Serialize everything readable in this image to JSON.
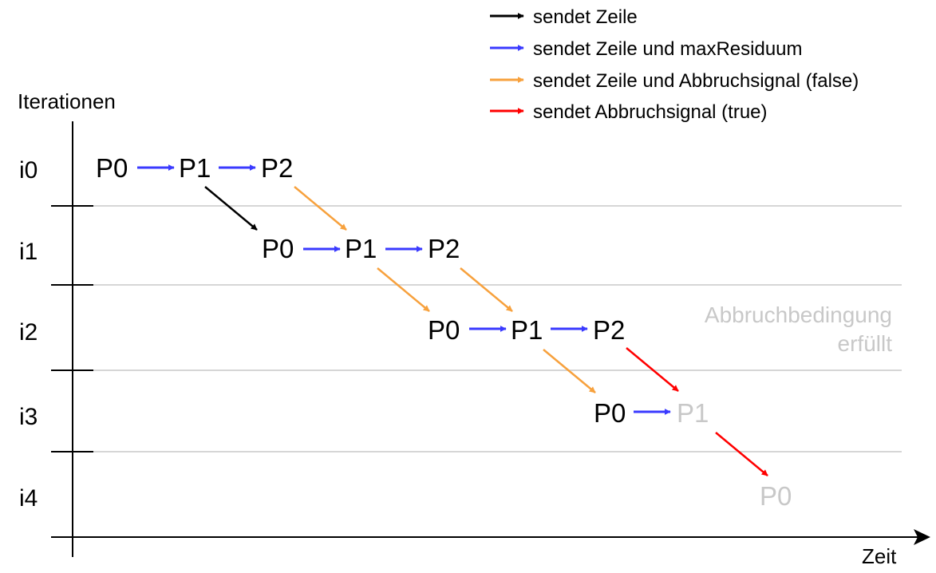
{
  "legend": [
    {
      "label": "sendet Zeile",
      "color": "#000000"
    },
    {
      "label": "sendet Zeile und maxResiduum",
      "color": "#3a3aff"
    },
    {
      "label": "sendet Zeile und Abbruchsignal (false)",
      "color": "#f7a13d"
    },
    {
      "label": "sendet Abbruchsignal (true)",
      "color": "#ff0000"
    }
  ],
  "y_axis_label": "Iterationen",
  "x_axis_label": "Zeit",
  "iterations": [
    "i0",
    "i1",
    "i2",
    "i3",
    "i4"
  ],
  "processes": [
    {
      "label": "P0",
      "iteration": "i0",
      "active": true
    },
    {
      "label": "P1",
      "iteration": "i0",
      "active": true
    },
    {
      "label": "P2",
      "iteration": "i0",
      "active": true
    },
    {
      "label": "P0",
      "iteration": "i1",
      "active": true
    },
    {
      "label": "P1",
      "iteration": "i1",
      "active": true
    },
    {
      "label": "P2",
      "iteration": "i1",
      "active": true
    },
    {
      "label": "P0",
      "iteration": "i2",
      "active": true
    },
    {
      "label": "P1",
      "iteration": "i2",
      "active": true
    },
    {
      "label": "P2",
      "iteration": "i2",
      "active": true
    },
    {
      "label": "P0",
      "iteration": "i3",
      "active": true
    },
    {
      "label": "P1",
      "iteration": "i3",
      "active": false
    },
    {
      "label": "P0",
      "iteration": "i4",
      "active": false
    }
  ],
  "note": {
    "line1": "Abbruchbedingung",
    "line2": "erfüllt"
  }
}
